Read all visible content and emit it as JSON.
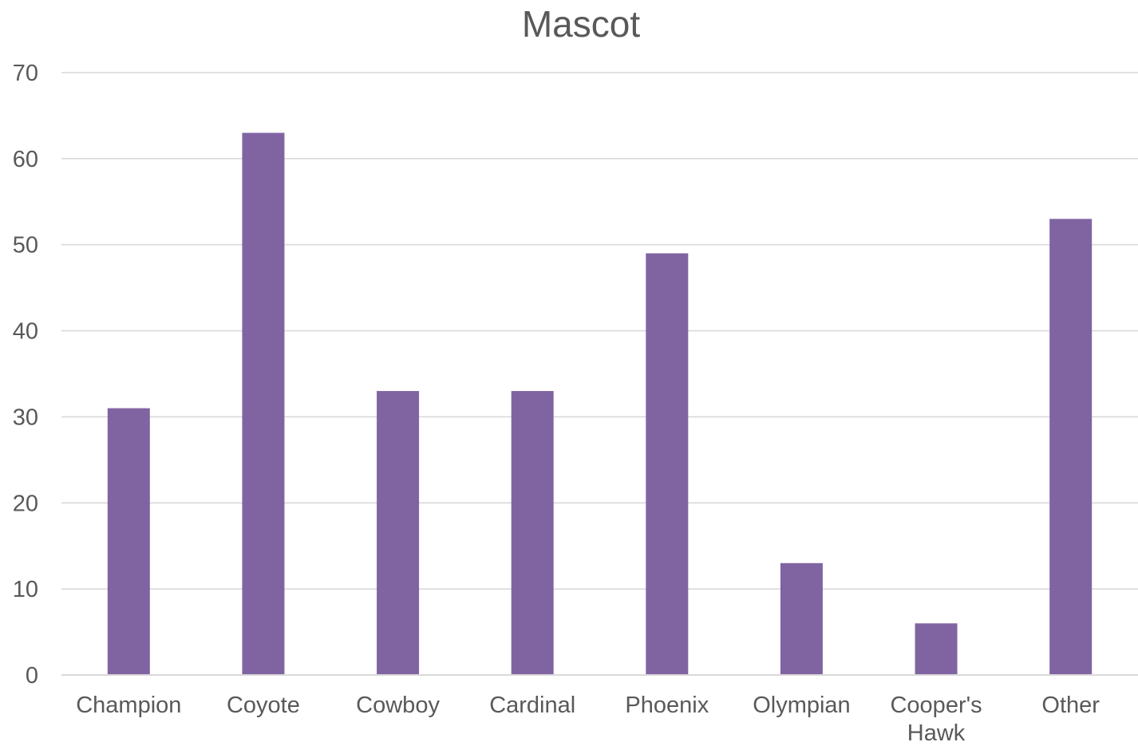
{
  "chart_data": {
    "type": "bar",
    "title": "Mascot",
    "categories": [
      "Champion",
      "Coyote",
      "Cowboy",
      "Cardinal",
      "Phoenix",
      "Olympian",
      "Cooper's Hawk",
      "Other"
    ],
    "values": [
      31,
      63,
      33,
      33,
      49,
      13,
      6,
      53
    ],
    "xlabel": "",
    "ylabel": "",
    "ylim": [
      0,
      70
    ],
    "yticks": [
      0,
      10,
      20,
      30,
      40,
      50,
      60,
      70
    ],
    "grid": true,
    "legend": "none",
    "bar_color": "#8064a2"
  }
}
